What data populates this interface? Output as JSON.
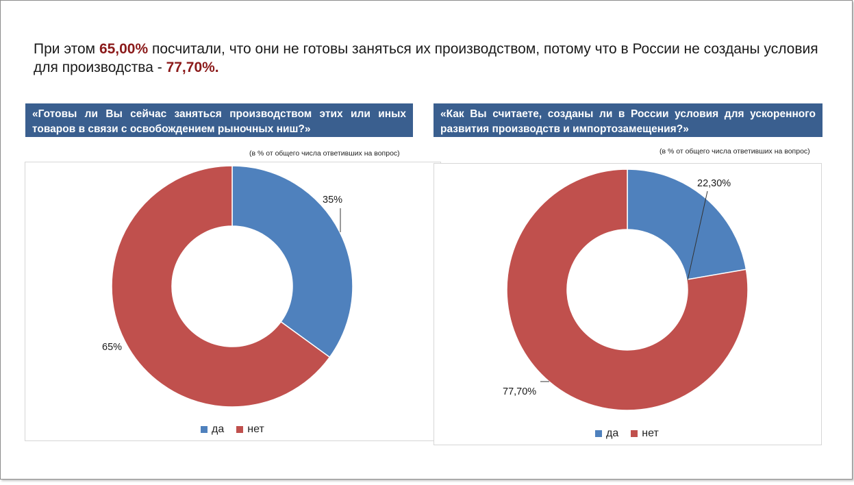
{
  "headline": {
    "part1": "При этом ",
    "value1": "65,00%",
    "part2": " посчитали, что они не готовы заняться их производством, потому что в России не созданы условия для производства - ",
    "value2": "77,70%."
  },
  "colors": {
    "yes": "#4f81bd",
    "no": "#c0504d",
    "question_bg": "#3a5f8f",
    "highlight": "#8b1a1a"
  },
  "chart_data": [
    {
      "type": "pie",
      "variant": "donut",
      "title": "«Готовы ли Вы сейчас заняться производством этих или иных товаров в связи с освобождением рыночных ниш?»",
      "note": "(в % от  общего числа ответивших на вопрос)",
      "categories": [
        "да",
        "нет"
      ],
      "values": [
        35,
        65
      ],
      "data_labels": [
        "35%",
        "65%"
      ],
      "legend": [
        "да",
        "нет"
      ],
      "legend_position": "bottom"
    },
    {
      "type": "pie",
      "variant": "donut",
      "title": "«Как Вы считаете, созданы ли в России условия для ускоренного развития производств и импортозамещения?»",
      "note": "(в % от  общего числа ответивших на вопрос)",
      "categories": [
        "да",
        "нет"
      ],
      "values": [
        22.3,
        77.7
      ],
      "data_labels": [
        "22,30%",
        "77,70%"
      ],
      "legend": [
        "да",
        "нет"
      ],
      "legend_position": "bottom"
    }
  ]
}
